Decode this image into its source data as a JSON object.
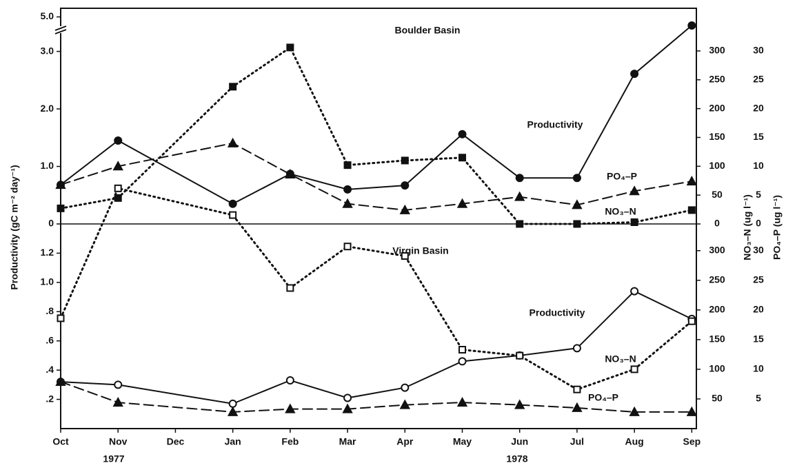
{
  "chart_data": [
    {
      "type": "line",
      "title": "Boulder Basin",
      "ylabel": "Productivity (gC m⁻² day⁻¹)",
      "y2label": "NO₃–N (ug l⁻¹)",
      "y3label": "PO₄–P (ug l⁻¹)",
      "x": [
        0,
        1,
        3,
        4,
        5,
        6,
        7,
        8,
        9,
        10,
        11
      ],
      "xlim": [
        0,
        11.08
      ],
      "ylim": [
        0,
        5.15
      ],
      "ybreak": [
        3.4,
        4.8
      ],
      "yticks": [
        0,
        {
          "value": 1,
          "label": "1.0"
        },
        {
          "value": 2,
          "label": "2.0"
        },
        {
          "value": 3,
          "label": "3.0"
        },
        {
          "value": 5,
          "label": "5.0"
        }
      ],
      "y2lim": [
        0,
        374
      ],
      "y2ticks": [
        0,
        50,
        100,
        150,
        200,
        250,
        300
      ],
      "y3lim": [
        0,
        37.4
      ],
      "y3ticks": [
        0,
        5,
        10,
        15,
        20,
        25,
        30
      ],
      "series": [
        {
          "name": "Productivity",
          "color": "#111111",
          "line_style": "solid",
          "marker": "circle",
          "marker_filled": true,
          "axis": "y",
          "values": [
            0.68,
            1.45,
            0.35,
            0.87,
            0.6,
            0.67,
            1.56,
            0.8,
            0.8,
            2.61,
            4.85
          ]
        },
        {
          "name": "NO₃–N",
          "color": "#111111",
          "line_style": "dotted",
          "marker": "square",
          "marker_filled": true,
          "axis": "y2",
          "values": [
            27,
            45,
            238,
            306,
            102,
            110,
            115,
            0,
            0,
            3,
            24
          ]
        },
        {
          "name": "PO₄–P",
          "color": "#111111",
          "line_style": "dashed",
          "marker": "triangle",
          "marker_filled": true,
          "axis": "y3",
          "values": [
            6.8,
            10,
            14,
            8.6,
            3.5,
            2.4,
            3.5,
            4.7,
            3.3,
            5.7,
            7.4
          ]
        }
      ]
    },
    {
      "type": "line",
      "title": "Virgin Basin",
      "x": [
        0,
        1,
        3,
        4,
        5,
        6,
        7,
        8,
        9,
        10,
        11
      ],
      "xlim": [
        0,
        11.08
      ],
      "xticks": [
        {
          "value": 0,
          "label": "Oct"
        },
        {
          "value": 1,
          "label": "Nov"
        },
        {
          "value": 2,
          "label": "Dec"
        },
        {
          "value": 3,
          "label": "Jan"
        },
        {
          "value": 4,
          "label": "Feb"
        },
        {
          "value": 5,
          "label": "Mar"
        },
        {
          "value": 6,
          "label": "Apr"
        },
        {
          "value": 7,
          "label": "May"
        },
        {
          "value": 8,
          "label": "Jun"
        },
        {
          "value": 9,
          "label": "Jul"
        },
        {
          "value": 10,
          "label": "Aug"
        },
        {
          "value": 11,
          "label": "Sep"
        }
      ],
      "annotations": [
        "1977",
        "1978"
      ],
      "ylim": [
        0,
        1.4
      ],
      "yticks": [
        {
          "value": 0.2,
          "label": ".2"
        },
        {
          "value": 0.4,
          "label": ".4"
        },
        {
          "value": 0.6,
          "label": ".6"
        },
        {
          "value": 0.8,
          "label": ".8"
        },
        {
          "value": 1,
          "label": "1.0"
        },
        {
          "value": 1.2,
          "label": "1.2"
        }
      ],
      "y2lim": [
        0,
        345
      ],
      "y2ticks": [
        50,
        100,
        150,
        200,
        250,
        300
      ],
      "y3lim": [
        0,
        34.5
      ],
      "y3ticks": [
        5,
        10,
        15,
        20,
        25,
        30
      ],
      "series": [
        {
          "name": "Productivity",
          "color": "#111111",
          "line_style": "solid",
          "marker": "circle",
          "marker_filled": false,
          "axis": "y",
          "values": [
            0.32,
            0.3,
            0.17,
            0.33,
            0.21,
            0.28,
            0.46,
            0.5,
            0.55,
            0.94,
            0.75
          ]
        },
        {
          "name": "NO₃–N",
          "color": "#111111",
          "line_style": "dotted",
          "marker": "square",
          "marker_filled": false,
          "axis": "y2",
          "values": [
            186,
            405,
            360,
            237,
            307,
            291,
            133,
            123,
            66,
            100,
            181
          ]
        },
        {
          "name": "PO₄–P",
          "color": "#111111",
          "line_style": "dashed",
          "marker": "triangle",
          "marker_filled": true,
          "axis": "y3",
          "values": [
            7.9,
            4.4,
            2.8,
            3.3,
            3.3,
            4.0,
            4.4,
            4.0,
            3.5,
            2.8,
            2.8
          ]
        }
      ]
    }
  ]
}
